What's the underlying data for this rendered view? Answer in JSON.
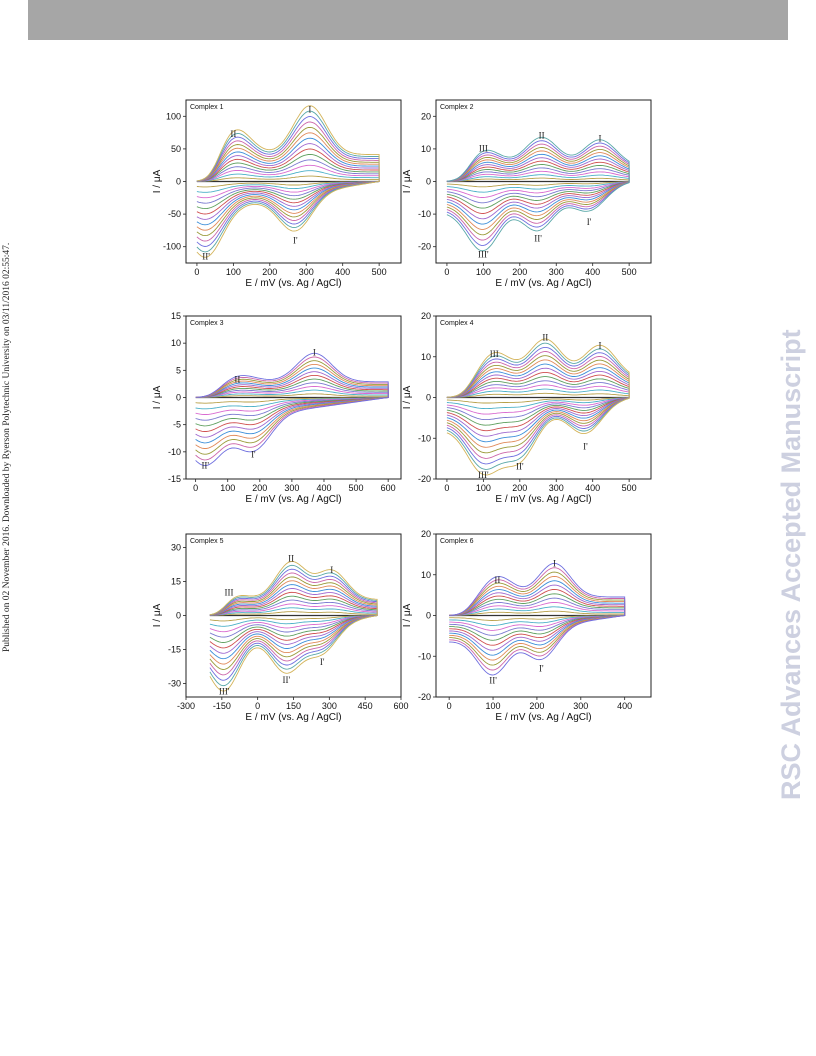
{
  "header": {
    "bar_color": "#a6a6a6"
  },
  "side_left": {
    "text": "Published on 02 November 2016. Downloaded by Ryerson Polytechnic University on 03/11/2016 02:55:47."
  },
  "side_right": {
    "text": "RSC Advances Accepted Manuscript"
  },
  "chart_data": [
    {
      "type": "line",
      "title": "Complex 1",
      "xlabel": "E / mV (vs. Ag / AgCl)",
      "ylabel": "I / μA",
      "xlim": [
        -30,
        560
      ],
      "ylim": [
        -125,
        125
      ],
      "xticks": [
        0,
        100,
        200,
        300,
        400,
        500
      ],
      "yticks": [
        -100,
        -50,
        0,
        50,
        100
      ],
      "n_scans": 14,
      "peaks_anodic": [
        {
          "label": "II",
          "x": 100,
          "y": 62
        },
        {
          "label": "I",
          "x": 310,
          "y": 100
        }
      ],
      "peaks_cathodic": [
        {
          "label": "II'",
          "x": 25,
          "y": -103
        },
        {
          "label": "I'",
          "x": 270,
          "y": -78
        }
      ],
      "E_start": 0,
      "E_end": 500
    },
    {
      "type": "line",
      "title": "Complex 2",
      "xlabel": "E / mV (vs. Ag / AgCl)",
      "ylabel": "I / μA",
      "xlim": [
        -30,
        560
      ],
      "ylim": [
        -25,
        25
      ],
      "xticks": [
        0,
        100,
        200,
        300,
        400,
        500
      ],
      "yticks": [
        -20,
        -10,
        0,
        10,
        20
      ],
      "n_scans": 13,
      "peaks_anodic": [
        {
          "label": "III",
          "x": 100,
          "y": 8
        },
        {
          "label": "II",
          "x": 260,
          "y": 12
        },
        {
          "label": "I",
          "x": 420,
          "y": 11
        }
      ],
      "peaks_cathodic": [
        {
          "label": "III'",
          "x": 100,
          "y": -20
        },
        {
          "label": "II'",
          "x": 250,
          "y": -15
        },
        {
          "label": "I'",
          "x": 390,
          "y": -10
        }
      ],
      "E_start": 0,
      "E_end": 500
    },
    {
      "type": "line",
      "title": "Complex 3",
      "xlabel": "E / mV (vs. Ag / AgCl)",
      "ylabel": "I / μA",
      "xlim": [
        -30,
        640
      ],
      "ylim": [
        -15,
        15
      ],
      "xticks": [
        0,
        100,
        200,
        300,
        400,
        500,
        600
      ],
      "yticks": [
        -15,
        -10,
        -5,
        0,
        5,
        10,
        15
      ],
      "n_scans": 12,
      "peaks_anodic": [
        {
          "label": "II",
          "x": 130,
          "y": 2
        },
        {
          "label": "I",
          "x": 370,
          "y": 7
        }
      ],
      "peaks_cathodic": [
        {
          "label": "II'",
          "x": 30,
          "y": -11
        },
        {
          "label": "I'",
          "x": 180,
          "y": -9
        }
      ],
      "E_start": 0,
      "E_end": 600
    },
    {
      "type": "line",
      "title": "Complex 4",
      "xlabel": "E / mV (vs. Ag / AgCl)",
      "ylabel": "I / μA",
      "xlim": [
        -30,
        560
      ],
      "ylim": [
        -20,
        20
      ],
      "xticks": [
        0,
        100,
        200,
        300,
        400,
        500
      ],
      "yticks": [
        -20,
        -10,
        0,
        10,
        20
      ],
      "n_scans": 14,
      "peaks_anodic": [
        {
          "label": "III",
          "x": 130,
          "y": 9
        },
        {
          "label": "II",
          "x": 270,
          "y": 13
        },
        {
          "label": "I",
          "x": 420,
          "y": 11
        }
      ],
      "peaks_cathodic": [
        {
          "label": "III'",
          "x": 100,
          "y": -17
        },
        {
          "label": "II'",
          "x": 200,
          "y": -15
        },
        {
          "label": "I'",
          "x": 380,
          "y": -10
        }
      ],
      "E_start": 0,
      "E_end": 500
    },
    {
      "type": "line",
      "title": "Complex 5",
      "xlabel": "E / mV (vs. Ag / AgCl)",
      "ylabel": "I / μA",
      "xlim": [
        -300,
        600
      ],
      "ylim": [
        -36,
        36
      ],
      "xticks": [
        -300,
        -150,
        0,
        150,
        300,
        450,
        600
      ],
      "yticks": [
        -30,
        -15,
        0,
        15,
        30
      ],
      "n_scans": 14,
      "peaks_anodic": [
        {
          "label": "III",
          "x": -120,
          "y": 7
        },
        {
          "label": "II",
          "x": 140,
          "y": 22
        },
        {
          "label": "I",
          "x": 310,
          "y": 17
        }
      ],
      "peaks_cathodic": [
        {
          "label": "III'",
          "x": -140,
          "y": -30
        },
        {
          "label": "II'",
          "x": 120,
          "y": -25
        },
        {
          "label": "I'",
          "x": 270,
          "y": -17
        }
      ],
      "E_start": -200,
      "E_end": 500
    },
    {
      "type": "line",
      "title": "Complex 6",
      "xlabel": "E / mV (vs. Ag / AgCl)",
      "ylabel": "I / μA",
      "xlim": [
        -30,
        460
      ],
      "ylim": [
        -20,
        20
      ],
      "xticks": [
        0,
        100,
        200,
        300,
        400
      ],
      "yticks": [
        -20,
        -10,
        0,
        10,
        20
      ],
      "n_scans": 12,
      "peaks_anodic": [
        {
          "label": "II",
          "x": 110,
          "y": 7
        },
        {
          "label": "I",
          "x": 240,
          "y": 11
        }
      ],
      "peaks_cathodic": [
        {
          "label": "II'",
          "x": 100,
          "y": -14
        },
        {
          "label": "I'",
          "x": 210,
          "y": -11
        }
      ],
      "E_start": 0,
      "E_end": 400
    }
  ],
  "colors": [
    "#b8a04a",
    "#4bb0c8",
    "#d96bd0",
    "#7a7ad0",
    "#5fa05f",
    "#d05050",
    "#a06ad0",
    "#3d8fd9",
    "#e08a5a",
    "#9b9b3b",
    "#cc66aa",
    "#6f6fdf",
    "#5aa8a8",
    "#d4b45a"
  ]
}
